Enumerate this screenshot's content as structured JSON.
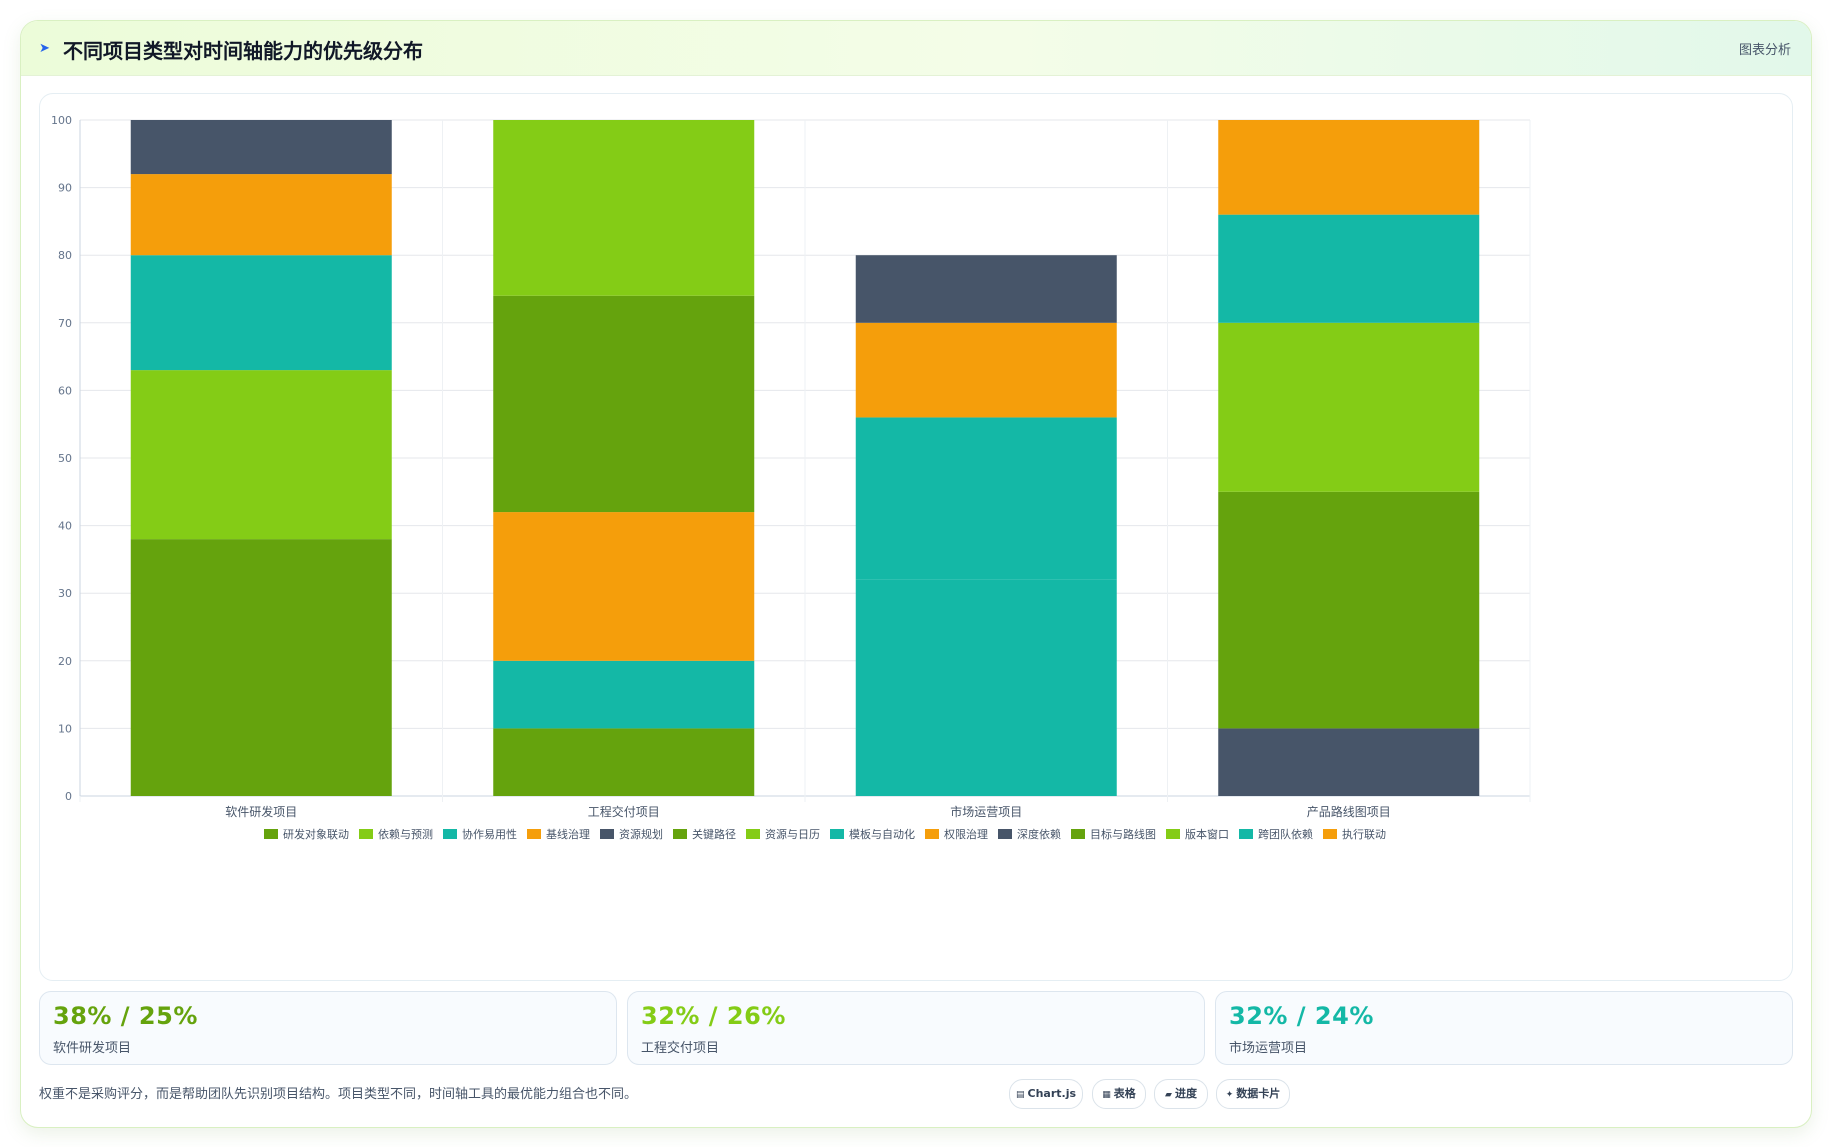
{
  "header": {
    "title": "不同项目类型对时间轴能力的优先级分布",
    "right_label": "图表分析",
    "title_icon": "sparkle-icon"
  },
  "chart_data": {
    "type": "bar",
    "stacked": true,
    "categories": [
      "软件研发项目",
      "工程交付项目",
      "市场运营项目",
      "产品路线图项目"
    ],
    "ylim": [
      0,
      100
    ],
    "yticks": [
      0,
      10,
      20,
      30,
      40,
      50,
      60,
      70,
      80,
      90,
      100
    ],
    "grid": true,
    "legend_position": "bottom",
    "series": [
      {
        "name": "研发对象联动",
        "color": "#65a30d",
        "values": [
          38,
          0,
          0,
          0
        ]
      },
      {
        "name": "依赖与预测",
        "color": "#84cc16",
        "values": [
          25,
          0,
          0,
          0
        ]
      },
      {
        "name": "协作易用性",
        "color": "#14b8a6",
        "values": [
          17,
          0,
          0,
          0
        ]
      },
      {
        "name": "基线治理",
        "color": "#f59e0b",
        "values": [
          12,
          0,
          0,
          0
        ]
      },
      {
        "name": "资源规划",
        "color": "#475569",
        "values": [
          8,
          0,
          0,
          0
        ]
      },
      {
        "name": "关键路径",
        "color": "#65a30d",
        "values": [
          0,
          10,
          0,
          0
        ]
      },
      {
        "name": "资源与日历",
        "color": "#84cc16",
        "values": [
          0,
          0,
          0,
          0
        ]
      },
      {
        "name": "模板与自动化",
        "color": "#14b8a6",
        "values": [
          0,
          10,
          32,
          0
        ]
      },
      {
        "name": "权限治理",
        "color": "#f59e0b",
        "values": [
          0,
          22,
          0,
          0
        ]
      },
      {
        "name": "深度依赖",
        "color": "#475569",
        "values": [
          0,
          0,
          0,
          10
        ]
      },
      {
        "name": "目标与路线图",
        "color": "#65a30d",
        "values": [
          0,
          32,
          0,
          35
        ]
      },
      {
        "name": "版本窗口",
        "color": "#84cc16",
        "values": [
          0,
          26,
          0,
          25
        ]
      },
      {
        "name": "跨团队依赖",
        "color": "#14b8a6",
        "values": [
          0,
          0,
          24,
          16
        ]
      },
      {
        "name": "执行联动",
        "color": "#f59e0b",
        "values": [
          0,
          0,
          14,
          14
        ]
      },
      {
        "name": "",
        "color": "#475569",
        "values": [
          0,
          0,
          10,
          0
        ]
      }
    ]
  },
  "stats": [
    {
      "value": "38% / 25%",
      "label": "软件研发项目",
      "color": "#65a30d"
    },
    {
      "value": "32% / 26%",
      "label": "工程交付项目",
      "color": "#84cc16"
    },
    {
      "value": "32% / 24%",
      "label": "市场运营项目",
      "color": "#14b8a6"
    }
  ],
  "footer": {
    "note": "权重不是采购评分，而是帮助团队先识别项目结构。项目类型不同，时间轴工具的最优能力组合也不同。",
    "chips": [
      {
        "icon": "chart-icon",
        "glyph": "▤",
        "label": "Chart.js"
      },
      {
        "icon": "table-icon",
        "glyph": "▦",
        "label": "表格"
      },
      {
        "icon": "progress-icon",
        "glyph": "▰",
        "label": "进度"
      },
      {
        "icon": "card-icon",
        "glyph": "✦",
        "label": "数据卡片"
      }
    ]
  }
}
